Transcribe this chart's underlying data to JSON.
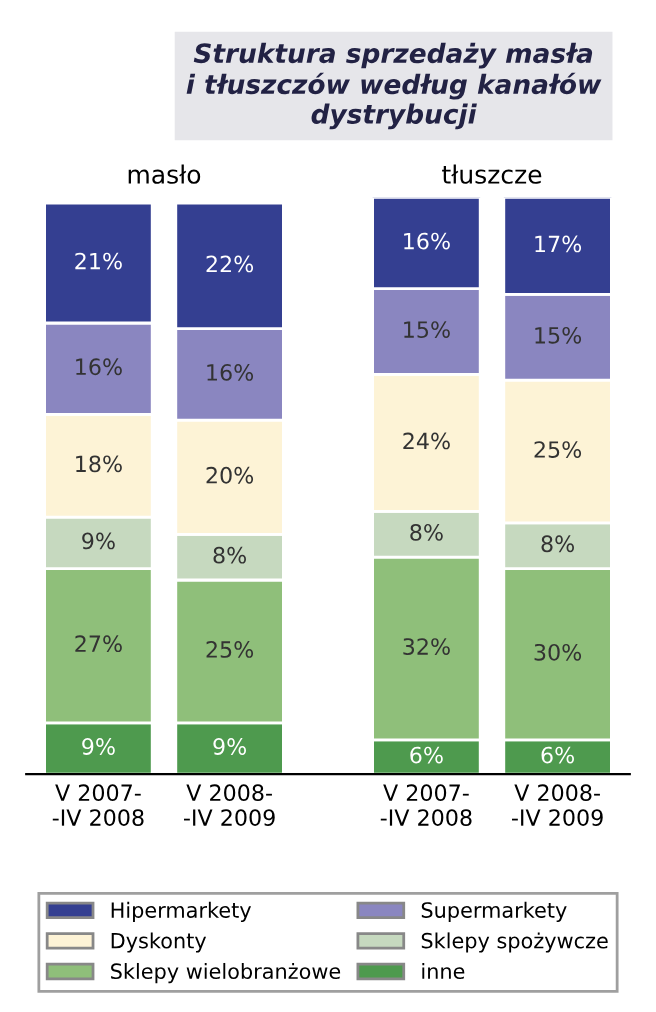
{
  "chart_data": {
    "type": "bar",
    "stacked": true,
    "title": "Struktura sprzedaży masła\ni tłuszczów według kanałów\ndystrybucji",
    "categories": [
      "V 2007-\n-IV 2008",
      "V 2008-\n-IV 2009",
      "V 2007-\n-IV 2008",
      "V 2008-\n-IV 2009"
    ],
    "annotations": [
      "masło",
      "tłuszcze"
    ],
    "series": [
      {
        "name": "inne",
        "color": "#4e9a4e",
        "values": [
          9,
          9,
          6,
          6
        ],
        "value_labels": [
          "9%",
          "9%",
          "6%",
          "6%"
        ]
      },
      {
        "name": "Sklepy wielobranżowe",
        "color": "#8fbf7a",
        "values": [
          27,
          25,
          32,
          30
        ],
        "value_labels": [
          "27%",
          "25%",
          "32%",
          "30%"
        ]
      },
      {
        "name": "Sklepy spożywcze",
        "color": "#c6d9bf",
        "values": [
          9,
          8,
          8,
          8
        ],
        "value_labels": [
          "9%",
          "8%",
          "8%",
          "8%"
        ]
      },
      {
        "name": "Dyskonty",
        "color": "#fdf3d6",
        "values": [
          18,
          20,
          24,
          25
        ],
        "value_labels": [
          "18%",
          "20%",
          "24%",
          "25%"
        ]
      },
      {
        "name": "Supermarkety",
        "color": "#8a86c0",
        "values": [
          16,
          16,
          15,
          15
        ],
        "value_labels": [
          "16%",
          "16%",
          "15%",
          "15%"
        ]
      },
      {
        "name": "Hipermarkety",
        "color": "#343f91",
        "values": [
          21,
          22,
          16,
          17
        ],
        "value_labels": [
          "21%",
          "22%",
          "16%",
          "17%"
        ]
      }
    ],
    "legend": "bottom",
    "grid": false,
    "tick_labels": "x"
  }
}
